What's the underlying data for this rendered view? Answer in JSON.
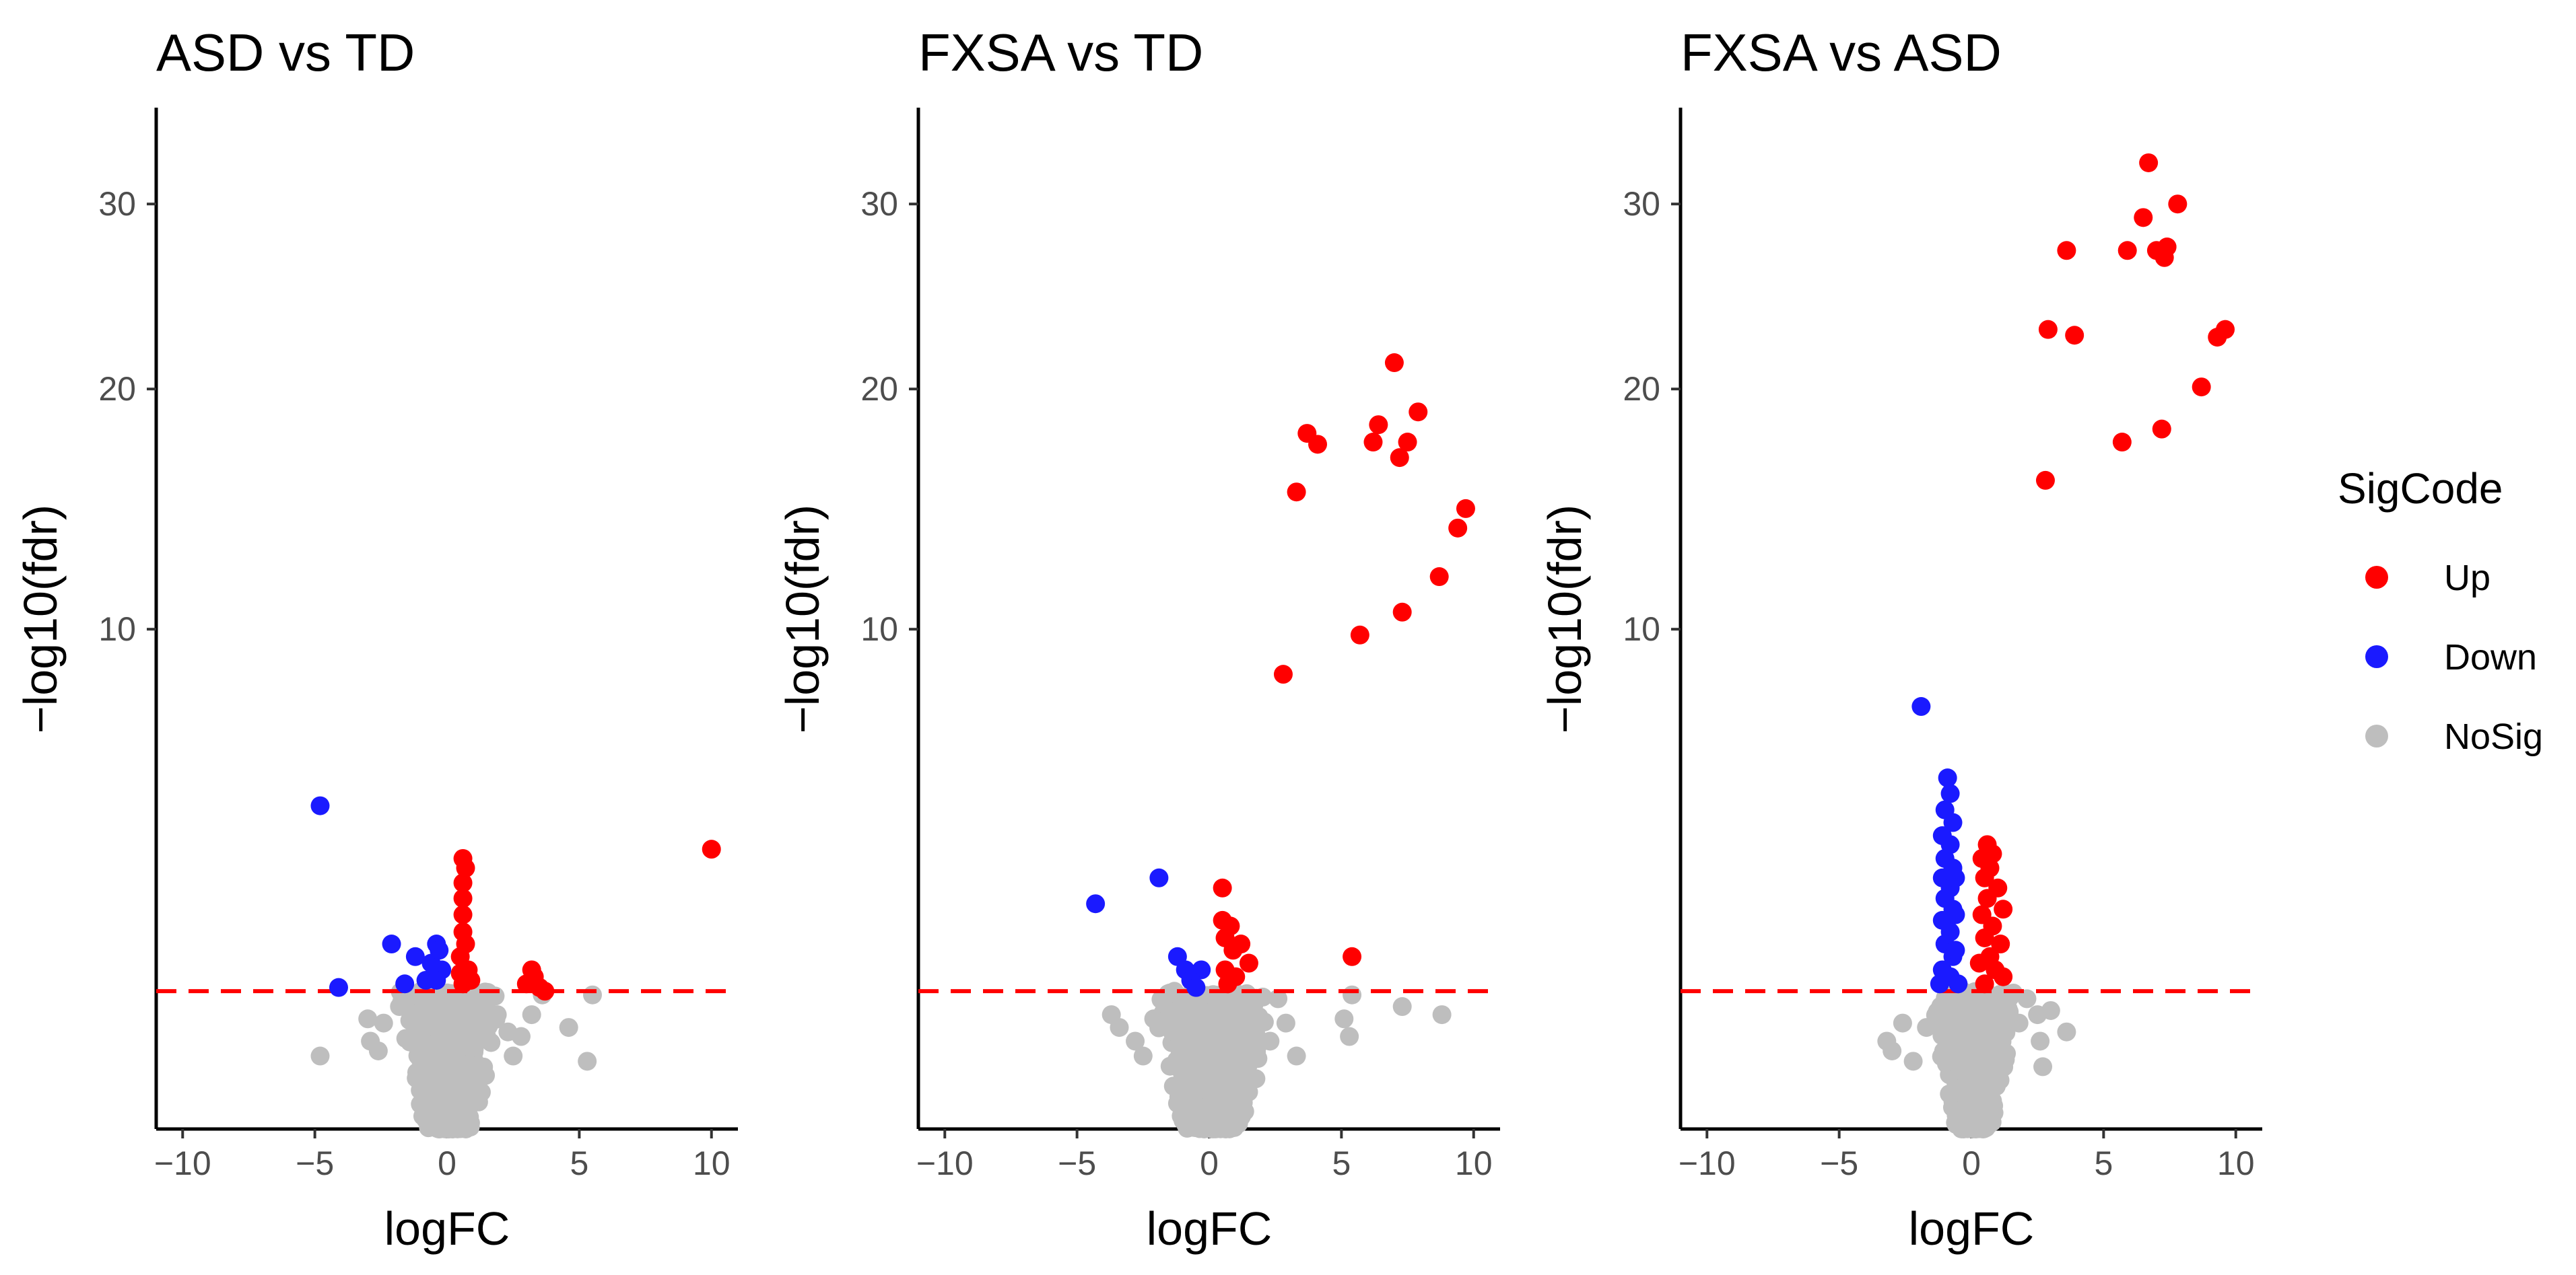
{
  "chart_data": {
    "type": "scatter",
    "xlabel": "logFC",
    "ylabel": "−log10(fdr)",
    "xlim": [
      -11,
      11
    ],
    "x_ticks": [
      {
        "value": -10,
        "label": "−10"
      },
      {
        "value": -5,
        "label": "−5"
      },
      {
        "value": 0,
        "label": "0"
      },
      {
        "value": 5,
        "label": "5"
      },
      {
        "value": 10,
        "label": "10"
      }
    ],
    "y_ticks": [
      {
        "value": 10,
        "label": "10"
      },
      {
        "value": 20,
        "label": "20"
      },
      {
        "value": 30,
        "label": "30"
      }
    ],
    "threshold": 1.3,
    "threshold_color": "#ff0000",
    "legend": {
      "title": "SigCode",
      "entries": [
        {
          "label": "Up",
          "color": "#ff0000"
        },
        {
          "label": "Down",
          "color": "#1a1aff"
        },
        {
          "label": "NoSig",
          "color": "#bebebe"
        }
      ]
    },
    "panels": [
      {
        "title": "ASD vs TD",
        "up": [
          [
            0.6,
            3.6
          ],
          [
            0.7,
            3.4
          ],
          [
            0.6,
            3.1
          ],
          [
            0.6,
            2.8
          ],
          [
            0.6,
            2.5
          ],
          [
            0.6,
            2.2
          ],
          [
            0.7,
            2.0
          ],
          [
            0.5,
            1.8
          ],
          [
            0.7,
            1.6
          ],
          [
            0.6,
            1.4
          ],
          [
            0.8,
            1.6
          ],
          [
            0.9,
            1.45
          ],
          [
            0.5,
            1.55
          ],
          [
            3.3,
            1.5
          ],
          [
            3.0,
            1.4
          ],
          [
            3.5,
            1.35
          ],
          [
            3.2,
            1.6
          ],
          [
            3.7,
            1.3
          ],
          [
            10.0,
            3.8
          ]
        ],
        "down": [
          [
            -4.8,
            4.8
          ],
          [
            -2.1,
            2.0
          ],
          [
            -0.4,
            2.0
          ],
          [
            -1.2,
            1.8
          ],
          [
            -0.6,
            1.7
          ],
          [
            -0.2,
            1.6
          ],
          [
            -0.3,
            1.9
          ],
          [
            -1.6,
            1.4
          ],
          [
            -0.8,
            1.45
          ],
          [
            -4.1,
            1.35
          ],
          [
            -0.4,
            1.45
          ]
        ],
        "nosig": [
          [
            -4.8,
            0.55
          ],
          [
            5.3,
            0.5
          ],
          [
            4.6,
            0.85
          ],
          [
            -3.0,
            0.95
          ],
          [
            -2.9,
            0.7
          ],
          [
            5.5,
            1.25
          ],
          [
            3.2,
            1.0
          ],
          [
            2.8,
            0.75
          ],
          [
            -1.8,
            1.1
          ],
          [
            -2.4,
            0.9
          ],
          [
            1.9,
            1.0
          ],
          [
            2.3,
            0.8
          ],
          [
            -2.6,
            0.6
          ],
          [
            2.5,
            0.55
          ],
          [
            3.6,
            1.25
          ]
        ],
        "nosig_spread": 2.2
      },
      {
        "title": "FXSA vs TD",
        "up": [
          [
            7.0,
            21.3
          ],
          [
            7.9,
            18.9
          ],
          [
            6.4,
            18.3
          ],
          [
            7.5,
            17.5
          ],
          [
            6.2,
            17.5
          ],
          [
            3.7,
            17.9
          ],
          [
            4.1,
            17.4
          ],
          [
            7.2,
            16.8
          ],
          [
            3.3,
            15.3
          ],
          [
            9.7,
            14.6
          ],
          [
            9.4,
            13.8
          ],
          [
            8.7,
            11.9
          ],
          [
            7.3,
            10.6
          ],
          [
            5.7,
            9.8
          ],
          [
            2.8,
            8.5
          ],
          [
            0.5,
            3.0
          ],
          [
            0.5,
            2.4
          ],
          [
            0.8,
            2.3
          ],
          [
            0.6,
            2.1
          ],
          [
            1.2,
            2.0
          ],
          [
            0.9,
            1.9
          ],
          [
            1.5,
            1.7
          ],
          [
            0.6,
            1.6
          ],
          [
            1.0,
            1.5
          ],
          [
            0.7,
            1.4
          ],
          [
            5.4,
            1.8
          ]
        ],
        "down": [
          [
            -1.9,
            3.2
          ],
          [
            -4.3,
            2.7
          ],
          [
            -1.2,
            1.8
          ],
          [
            -0.9,
            1.6
          ],
          [
            -0.3,
            1.6
          ],
          [
            -0.7,
            1.45
          ],
          [
            -0.5,
            1.35
          ]
        ],
        "nosig": [
          [
            -3.7,
            1.0
          ],
          [
            -3.4,
            0.85
          ],
          [
            7.3,
            1.1
          ],
          [
            8.8,
            1.0
          ],
          [
            5.4,
            1.25
          ],
          [
            5.1,
            0.95
          ],
          [
            5.3,
            0.75
          ],
          [
            2.6,
            1.2
          ],
          [
            -2.8,
            0.7
          ],
          [
            2.9,
            0.9
          ],
          [
            -2.1,
            0.95
          ],
          [
            3.3,
            0.55
          ],
          [
            -2.5,
            0.55
          ],
          [
            2.3,
            0.7
          ]
        ],
        "nosig_spread": 2.6
      },
      {
        "title": "FXSA vs ASD",
        "up": [
          [
            6.7,
            32.5
          ],
          [
            7.8,
            30.0
          ],
          [
            6.5,
            29.2
          ],
          [
            5.9,
            27.3
          ],
          [
            3.6,
            27.3
          ],
          [
            7.0,
            27.3
          ],
          [
            7.4,
            27.5
          ],
          [
            7.3,
            26.9
          ],
          [
            2.9,
            23.0
          ],
          [
            3.9,
            22.7
          ],
          [
            9.6,
            23.0
          ],
          [
            9.3,
            22.6
          ],
          [
            8.7,
            20.1
          ],
          [
            7.2,
            18.1
          ],
          [
            5.7,
            17.5
          ],
          [
            2.8,
            15.8
          ],
          [
            0.4,
            3.6
          ],
          [
            0.7,
            3.4
          ],
          [
            0.5,
            3.2
          ],
          [
            1.0,
            3.0
          ],
          [
            0.6,
            2.8
          ],
          [
            1.2,
            2.6
          ],
          [
            0.4,
            2.5
          ],
          [
            0.8,
            2.3
          ],
          [
            0.5,
            2.1
          ],
          [
            1.1,
            2.0
          ],
          [
            0.7,
            1.8
          ],
          [
            0.3,
            1.7
          ],
          [
            0.9,
            1.6
          ],
          [
            0.5,
            1.4
          ],
          [
            1.2,
            1.5
          ],
          [
            0.6,
            3.9
          ],
          [
            0.8,
            3.7
          ]
        ],
        "down": [
          [
            -1.9,
            7.5
          ],
          [
            -0.9,
            5.5
          ],
          [
            -0.8,
            5.1
          ],
          [
            -1.0,
            4.7
          ],
          [
            -0.7,
            4.4
          ],
          [
            -1.1,
            4.1
          ],
          [
            -0.8,
            3.9
          ],
          [
            -1.0,
            3.6
          ],
          [
            -0.7,
            3.4
          ],
          [
            -1.1,
            3.2
          ],
          [
            -0.8,
            3.0
          ],
          [
            -1.0,
            2.8
          ],
          [
            -0.7,
            2.6
          ],
          [
            -1.1,
            2.4
          ],
          [
            -0.8,
            2.2
          ],
          [
            -1.0,
            2.0
          ],
          [
            -0.7,
            1.8
          ],
          [
            -1.1,
            1.6
          ],
          [
            -0.8,
            1.5
          ],
          [
            -0.5,
            1.4
          ],
          [
            -1.2,
            1.4
          ],
          [
            -0.6,
            1.9
          ],
          [
            -0.6,
            2.5
          ],
          [
            -0.6,
            3.2
          ]
        ],
        "nosig": [
          [
            3.0,
            1.05
          ],
          [
            2.1,
            1.2
          ],
          [
            3.6,
            0.8
          ],
          [
            2.6,
            0.7
          ],
          [
            -3.2,
            0.7
          ],
          [
            -2.6,
            0.9
          ],
          [
            -3.0,
            0.6
          ],
          [
            2.7,
            0.45
          ],
          [
            1.8,
            0.9
          ],
          [
            -2.2,
            0.5
          ],
          [
            2.5,
            1.0
          ],
          [
            -1.7,
            0.85
          ]
        ],
        "nosig_spread": 1.7
      }
    ]
  }
}
